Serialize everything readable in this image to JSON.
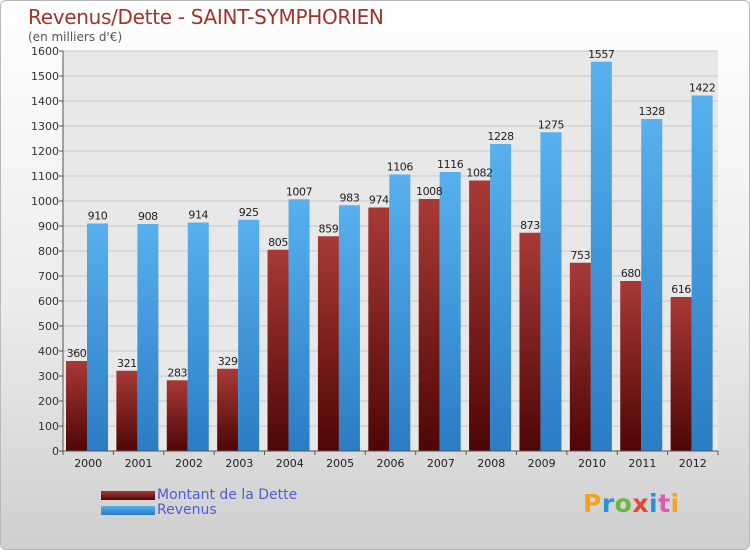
{
  "title": "Revenus/Dette - SAINT-SYMPHORIEN",
  "subtitle": "(en milliers d'€)",
  "logo": {
    "text": "Proxiti",
    "colors": [
      "#f3a21b",
      "#2d8fd8",
      "#6bb83a",
      "#e8443a",
      "#2d8fd8",
      "#e05ab0",
      "#f3a21b"
    ]
  },
  "colors": {
    "dette": "#7a1010",
    "revenus": "#3d9ae0"
  },
  "chart_data": {
    "type": "bar",
    "title": "Revenus/Dette - SAINT-SYMPHORIEN",
    "ylabel": "(en milliers d'€)",
    "ylim": [
      0,
      1600
    ],
    "yticks": [
      0,
      100,
      200,
      300,
      400,
      500,
      600,
      700,
      800,
      900,
      1000,
      1100,
      1200,
      1300,
      1400,
      1500,
      1600
    ],
    "grid": true,
    "legend": "bottom-left",
    "categories": [
      "2000",
      "2001",
      "2002",
      "2003",
      "2004",
      "2005",
      "2006",
      "2007",
      "2008",
      "2009",
      "2010",
      "2011",
      "2012"
    ],
    "series": [
      {
        "name": "Montant de la Dette",
        "values": [
          360,
          321,
          283,
          329,
          805,
          859,
          974,
          1008,
          1082,
          873,
          753,
          680,
          616
        ]
      },
      {
        "name": "Revenus",
        "values": [
          910,
          908,
          914,
          925,
          1007,
          983,
          1106,
          1116,
          1228,
          1275,
          1557,
          1328,
          1422
        ]
      }
    ]
  }
}
